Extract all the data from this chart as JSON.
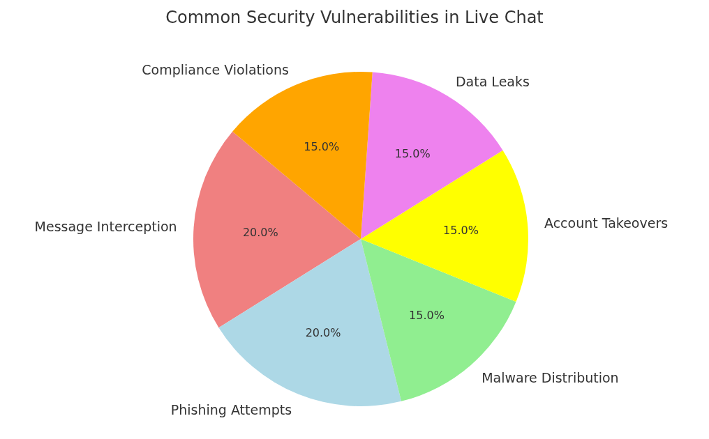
{
  "chart_data": {
    "type": "pie",
    "title": "Common Security Vulnerabilities in Live Chat",
    "categories": [
      "Message Interception",
      "Phishing Attempts",
      "Malware Distribution",
      "Account Takeovers",
      "Data Leaks",
      "Compliance Violations"
    ],
    "values": [
      20,
      20,
      15,
      15,
      15,
      15
    ],
    "colors": [
      "#f08080",
      "#add8e6",
      "#90ee90",
      "#ffff00",
      "#ee82ee",
      "#ffa500"
    ],
    "value_labels": [
      "20.0%",
      "20.0%",
      "15.0%",
      "15.0%",
      "15.0%",
      "15.0%"
    ]
  }
}
